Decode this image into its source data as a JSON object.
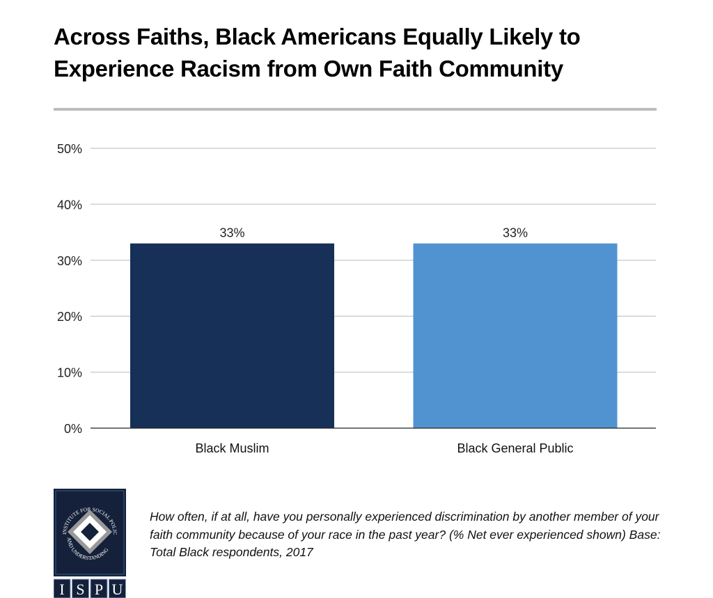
{
  "title": "Across Faiths, Black Americans Equally Likely to Experience Racism from Own Faith Community",
  "footnote": "How often, if at all, have you personally experienced discrimination by another member of your faith community because of your race in the past year? (% Net ever experienced shown) Base: Total Black respondents, 2017",
  "logo": {
    "text": "INSTITUTE FOR SOCIAL POLICY AND UNDERSTANDING",
    "letters": [
      "I",
      "S",
      "P",
      "U"
    ]
  },
  "chart_data": {
    "type": "bar",
    "title": "Across Faiths, Black Americans Equally Likely to Experience Racism from Own Faith Community",
    "categories": [
      "Black Muslim",
      "Black General Public"
    ],
    "values": [
      33,
      33
    ],
    "data_labels": [
      "33%",
      "33%"
    ],
    "colors": [
      "#163057",
      "#5193d0"
    ],
    "ylim": [
      0,
      50
    ],
    "yticks": [
      "0%",
      "10%",
      "20%",
      "30%",
      "40%",
      "50%"
    ],
    "grid": true,
    "xlabel": "",
    "ylabel": ""
  }
}
